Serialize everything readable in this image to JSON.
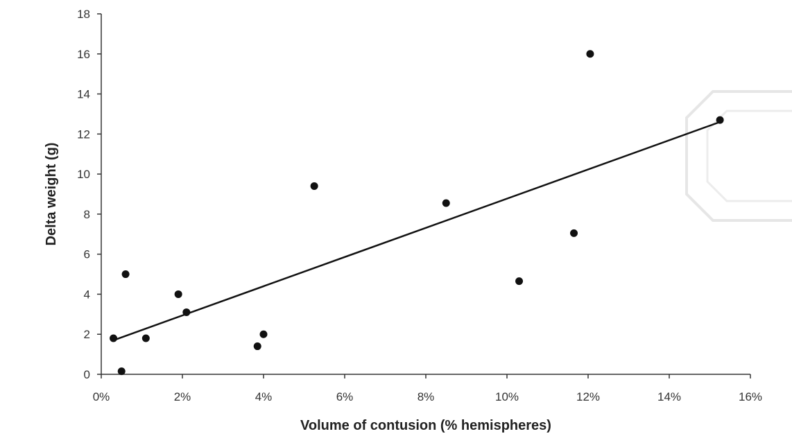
{
  "chart_data": {
    "type": "scatter",
    "title": "",
    "xlabel": "Volume of contusion (% hemispheres)",
    "ylabel": "Delta weight (g)",
    "xlim": [
      0,
      16
    ],
    "ylim": [
      0,
      18
    ],
    "x_ticks": [
      0,
      2,
      4,
      6,
      8,
      10,
      12,
      14,
      16
    ],
    "x_tick_labels": [
      "0%",
      "2%",
      "4%",
      "6%",
      "8%",
      "10%",
      "12%",
      "14%",
      "16%"
    ],
    "y_ticks": [
      0,
      2,
      4,
      6,
      8,
      10,
      12,
      14,
      16,
      18
    ],
    "y_tick_labels": [
      "0",
      "2",
      "4",
      "6",
      "8",
      "10",
      "12",
      "14",
      "16",
      "18"
    ],
    "grid": false,
    "legend": "none",
    "series": [
      {
        "points": [
          {
            "x": 0.3,
            "y": 1.8
          },
          {
            "x": 0.5,
            "y": 0.15
          },
          {
            "x": 0.6,
            "y": 5.0
          },
          {
            "x": 1.1,
            "y": 1.8
          },
          {
            "x": 1.9,
            "y": 4.0
          },
          {
            "x": 2.1,
            "y": 3.1
          },
          {
            "x": 3.85,
            "y": 1.4
          },
          {
            "x": 4.0,
            "y": 2.0
          },
          {
            "x": 5.25,
            "y": 9.4
          },
          {
            "x": 8.5,
            "y": 8.55
          },
          {
            "x": 10.3,
            "y": 4.65
          },
          {
            "x": 11.65,
            "y": 7.05
          },
          {
            "x": 12.05,
            "y": 16.0
          },
          {
            "x": 15.25,
            "y": 12.7
          }
        ]
      }
    ],
    "trendline": {
      "type": "linear",
      "x0": 0.3,
      "y0": 1.7,
      "x1": 15.25,
      "y1": 12.6
    },
    "colors": {
      "marker": "#111111",
      "line": "#111111",
      "axis": "#333333",
      "watermark": "#e0e0e0"
    }
  }
}
